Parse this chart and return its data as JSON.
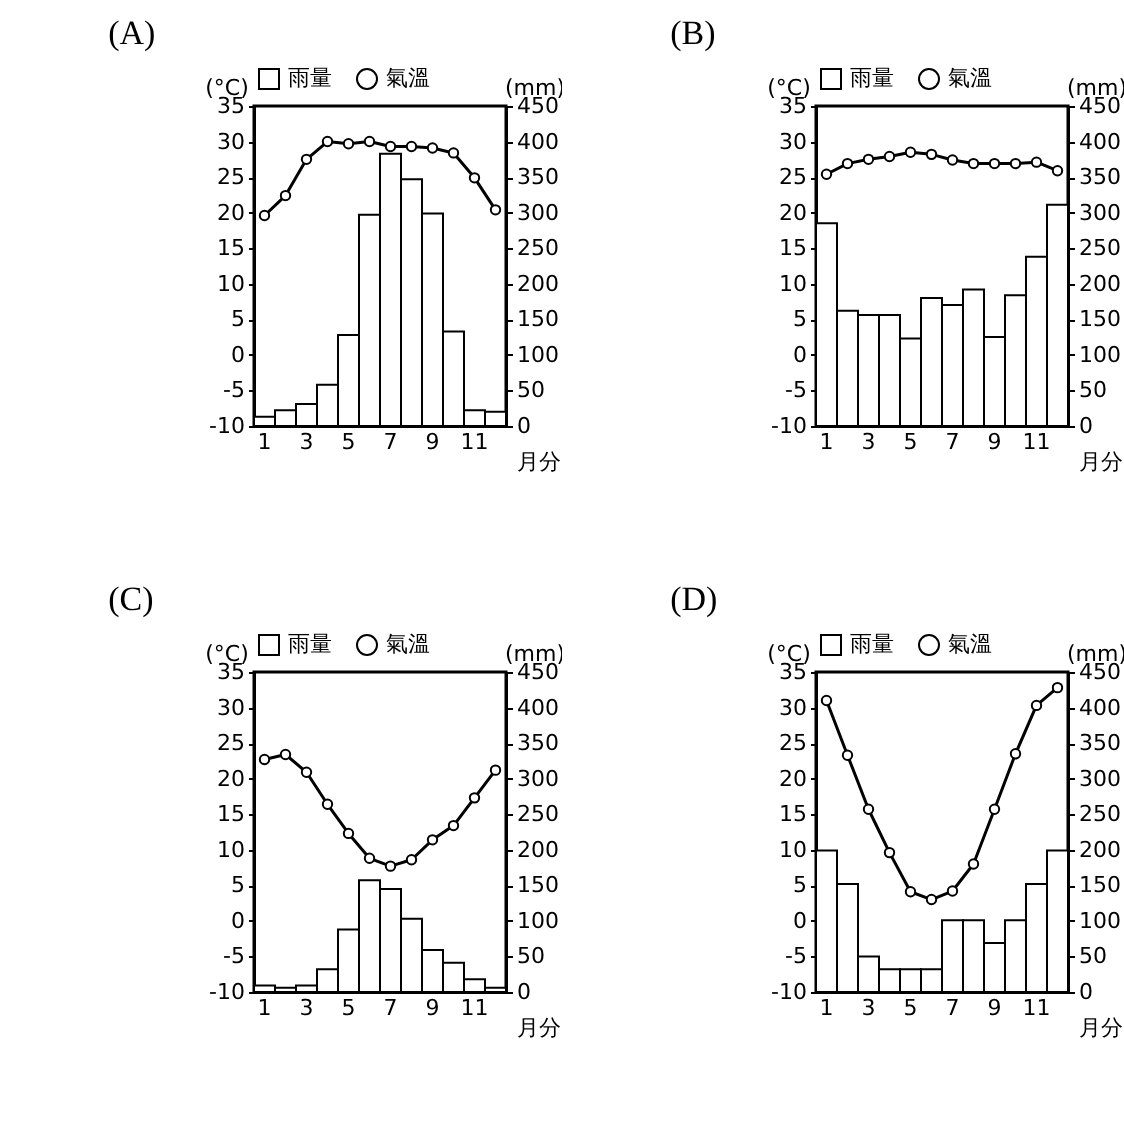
{
  "chart_data": [
    {
      "type": "bar",
      "title": "(A)",
      "xlabel": "月分",
      "ylabel": "(°C)",
      "y2label": "(mm)",
      "categories": [
        "1",
        null,
        "3",
        null,
        "5",
        null,
        "7",
        null,
        "9",
        null,
        "11",
        null
      ],
      "series": [
        {
          "name": "雨量",
          "axis": "y2",
          "color": "#ffffff",
          "values": [
            13,
            22,
            31,
            58,
            128,
            297,
            383,
            347,
            299,
            133,
            22,
            20
          ]
        },
        {
          "name": "氣溫",
          "type": "line",
          "color": "#000000",
          "values": [
            19.6,
            22.4,
            27.5,
            30.0,
            29.7,
            30.0,
            29.3,
            29.3,
            29.1,
            28.4,
            24.9,
            20.4
          ]
        }
      ],
      "ylim": [
        -10,
        35
      ],
      "yticks": [
        -10,
        -5,
        0,
        5,
        10,
        15,
        20,
        25,
        30,
        35
      ],
      "y2lim": [
        0,
        450
      ],
      "y2ticks": [
        0,
        50,
        100,
        150,
        200,
        250,
        300,
        350,
        400,
        450
      ],
      "legend": "top",
      "marker": "circle",
      "line_style": "solid"
    },
    {
      "type": "bar",
      "title": "(B)",
      "xlabel": "月分",
      "ylabel": "(°C)",
      "y2label": "(mm)",
      "categories": [
        "1",
        null,
        "3",
        null,
        "5",
        null,
        "7",
        null,
        "9",
        null,
        "11",
        null
      ],
      "series": [
        {
          "name": "雨量",
          "axis": "y2",
          "color": "#ffffff",
          "values": [
            285,
            162,
            156,
            156,
            123,
            180,
            170,
            192,
            125,
            184,
            238,
            311
          ]
        },
        {
          "name": "氣溫",
          "type": "line",
          "color": "#000000",
          "values": [
            25.4,
            26.9,
            27.5,
            27.9,
            28.5,
            28.2,
            27.4,
            26.9,
            26.9,
            26.9,
            27.1,
            25.9
          ]
        }
      ],
      "ylim": [
        -10,
        35
      ],
      "yticks": [
        -10,
        -5,
        0,
        5,
        10,
        15,
        20,
        25,
        30,
        35
      ],
      "y2lim": [
        0,
        450
      ],
      "y2ticks": [
        0,
        50,
        100,
        150,
        200,
        250,
        300,
        350,
        400,
        450
      ],
      "legend": "top",
      "marker": "circle",
      "line_style": "solid"
    },
    {
      "type": "bar",
      "title": "(C)",
      "xlabel": "月分",
      "ylabel": "(°C)",
      "y2label": "(mm)",
      "categories": [
        "1",
        null,
        "3",
        null,
        "5",
        null,
        "7",
        null,
        "9",
        null,
        "11",
        null
      ],
      "series": [
        {
          "name": "雨量",
          "axis": "y2",
          "color": "#ffffff",
          "values": [
            9,
            6,
            9,
            32,
            88,
            157,
            145,
            103,
            59,
            41,
            18,
            6
          ]
        },
        {
          "name": "氣溫",
          "type": "line",
          "color": "#000000",
          "values": [
            22.7,
            23.4,
            20.9,
            16.4,
            12.3,
            8.8,
            7.7,
            8.6,
            11.4,
            13.4,
            17.3,
            21.2
          ]
        }
      ],
      "ylim": [
        -10,
        35
      ],
      "yticks": [
        -10,
        -5,
        0,
        5,
        10,
        15,
        20,
        25,
        30,
        35
      ],
      "y2lim": [
        0,
        450
      ],
      "y2ticks": [
        0,
        50,
        100,
        150,
        200,
        250,
        300,
        350,
        400,
        450
      ],
      "legend": "top",
      "marker": "circle",
      "line_style": "solid"
    },
    {
      "type": "bar",
      "title": "(D)",
      "xlabel": "月分",
      "ylabel": "(°C)",
      "y2label": "(mm)",
      "categories": [
        "1",
        null,
        "3",
        null,
        "5",
        null,
        "7",
        null,
        "9",
        null,
        "11",
        null
      ],
      "series": [
        {
          "name": "雨量",
          "axis": "y2",
          "color": "#ffffff",
          "values": [
            199,
            152,
            50,
            32,
            32,
            32,
            101,
            101,
            69,
            101,
            152,
            199
          ]
        },
        {
          "name": "氣溫",
          "type": "line",
          "color": "#000000",
          "values": [
            31.0,
            23.3,
            15.7,
            9.6,
            4.1,
            3.0,
            4.2,
            8.0,
            15.7,
            23.5,
            30.3,
            32.8
          ]
        }
      ],
      "ylim": [
        -10,
        35
      ],
      "yticks": [
        -10,
        -5,
        0,
        5,
        10,
        15,
        20,
        25,
        30,
        35
      ],
      "y2lim": [
        0,
        450
      ],
      "y2ticks": [
        0,
        50,
        100,
        150,
        200,
        250,
        300,
        350,
        400,
        450
      ],
      "legend": "top",
      "marker": "circle",
      "line_style": "solid"
    }
  ]
}
